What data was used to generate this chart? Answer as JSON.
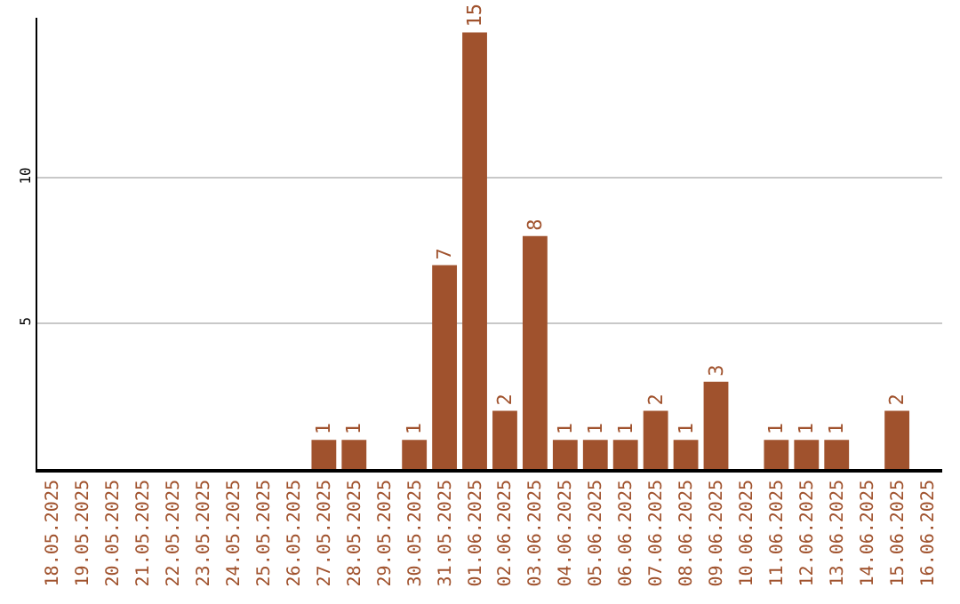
{
  "chart_data": {
    "type": "bar",
    "categories": [
      "18.05.2025",
      "19.05.2025",
      "20.05.2025",
      "21.05.2025",
      "22.05.2025",
      "23.05.2025",
      "24.05.2025",
      "25.05.2025",
      "26.05.2025",
      "27.05.2025",
      "28.05.2025",
      "29.05.2025",
      "30.05.2025",
      "31.05.2025",
      "01.06.2025",
      "02.06.2025",
      "03.06.2025",
      "04.06.2025",
      "05.06.2025",
      "06.06.2025",
      "07.06.2025",
      "08.06.2025",
      "09.06.2025",
      "10.06.2025",
      "11.06.2025",
      "12.06.2025",
      "13.06.2025",
      "14.06.2025",
      "15.06.2025",
      "16.06.2025"
    ],
    "values": [
      0,
      0,
      0,
      0,
      0,
      0,
      0,
      0,
      0,
      1,
      1,
      0,
      1,
      7,
      15,
      2,
      8,
      1,
      1,
      1,
      2,
      1,
      3,
      0,
      1,
      1,
      1,
      0,
      2,
      0
    ],
    "value_labels": [
      null,
      null,
      null,
      null,
      null,
      null,
      null,
      null,
      null,
      "1",
      "1",
      null,
      "1",
      "7",
      "15",
      "2",
      "8",
      "1",
      "1",
      "1",
      "2",
      "1",
      "3",
      null,
      "1",
      "1",
      "1",
      null,
      "2",
      null
    ],
    "color": "#a0522d",
    "ylim": [
      0,
      15.5
    ],
    "yticks": [
      5,
      10
    ],
    "grid": "y"
  }
}
